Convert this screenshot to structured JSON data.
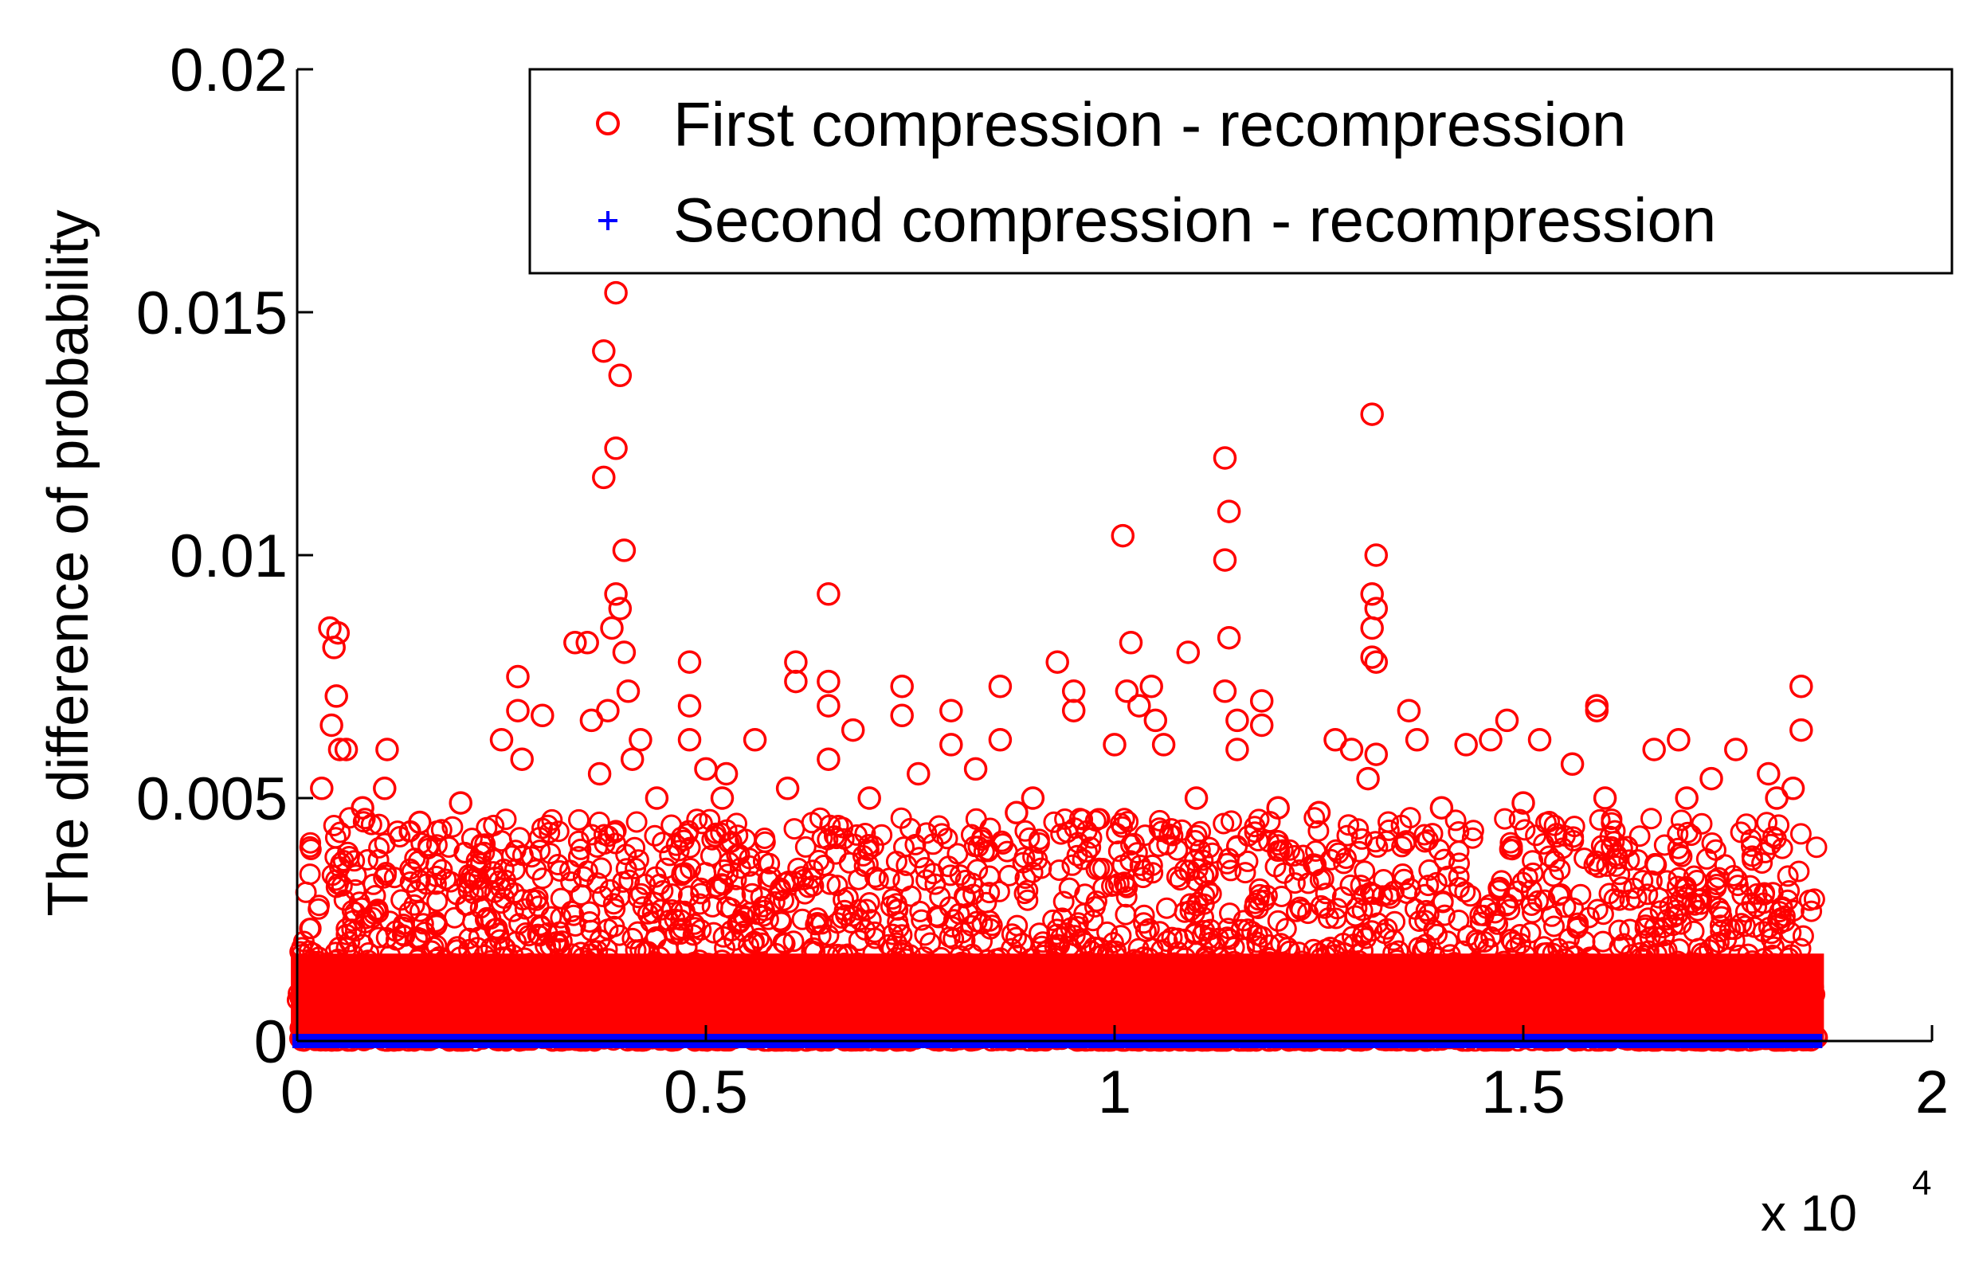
{
  "chart_data": {
    "type": "scatter",
    "ylabel": "The difference of  probability",
    "xlabel": "",
    "x_exponent": {
      "base": "x 10",
      "power": "4"
    },
    "xlim": [
      0,
      20000
    ],
    "ylim": [
      0,
      0.02
    ],
    "x_ticks": [
      0,
      5000,
      10000,
      15000,
      20000
    ],
    "x_tick_labels": [
      "0",
      "0.5",
      "1",
      "1.5",
      "2"
    ],
    "y_ticks": [
      0,
      0.005,
      0.01,
      0.015,
      0.02
    ],
    "y_tick_labels": [
      "0",
      "0.005",
      "0.01",
      "0.015",
      "0.02"
    ],
    "grid": false,
    "legend_position": "top-right",
    "x_range_of_data": [
      0,
      18600
    ],
    "series": [
      {
        "name": "First compression - recompression",
        "marker": "circle",
        "color": "#ff0000",
        "points": [
          [
            400,
            0.0085
          ],
          [
            500,
            0.0084
          ],
          [
            450,
            0.0081
          ],
          [
            480,
            0.0071
          ],
          [
            420,
            0.0065
          ],
          [
            520,
            0.006
          ],
          [
            600,
            0.006
          ],
          [
            1100,
            0.006
          ],
          [
            1070,
            0.0052
          ],
          [
            300,
            0.0052
          ],
          [
            2500,
            0.0062
          ],
          [
            2700,
            0.0075
          ],
          [
            2700,
            0.0068
          ],
          [
            2750,
            0.0058
          ],
          [
            3000,
            0.0067
          ],
          [
            3400,
            0.0082
          ],
          [
            3550,
            0.0082
          ],
          [
            3750,
            0.0142
          ],
          [
            3900,
            0.0154
          ],
          [
            3950,
            0.0137
          ],
          [
            3900,
            0.0122
          ],
          [
            3750,
            0.0116
          ],
          [
            4000,
            0.0101
          ],
          [
            3900,
            0.0092
          ],
          [
            3950,
            0.0089
          ],
          [
            3850,
            0.0085
          ],
          [
            4000,
            0.008
          ],
          [
            4050,
            0.0072
          ],
          [
            3800,
            0.0068
          ],
          [
            3600,
            0.0066
          ],
          [
            4200,
            0.0062
          ],
          [
            4100,
            0.0058
          ],
          [
            3700,
            0.0055
          ],
          [
            4400,
            0.005
          ],
          [
            4800,
            0.0078
          ],
          [
            4800,
            0.0069
          ],
          [
            4800,
            0.0062
          ],
          [
            5000,
            0.0056
          ],
          [
            5250,
            0.0055
          ],
          [
            5200,
            0.005
          ],
          [
            5600,
            0.0062
          ],
          [
            6100,
            0.0078
          ],
          [
            6100,
            0.0074
          ],
          [
            6500,
            0.0092
          ],
          [
            6500,
            0.0074
          ],
          [
            6500,
            0.0069
          ],
          [
            6500,
            0.0058
          ],
          [
            6800,
            0.0064
          ],
          [
            7400,
            0.0073
          ],
          [
            7400,
            0.0067
          ],
          [
            7600,
            0.0055
          ],
          [
            8000,
            0.0068
          ],
          [
            8000,
            0.0061
          ],
          [
            8300,
            0.0056
          ],
          [
            8600,
            0.0073
          ],
          [
            8600,
            0.0062
          ],
          [
            9300,
            0.0078
          ],
          [
            9500,
            0.0072
          ],
          [
            9500,
            0.0068
          ],
          [
            10000,
            0.0061
          ],
          [
            10100,
            0.0104
          ],
          [
            10200,
            0.0082
          ],
          [
            10150,
            0.0072
          ],
          [
            10300,
            0.0069
          ],
          [
            10450,
            0.0073
          ],
          [
            10500,
            0.0066
          ],
          [
            10600,
            0.0061
          ],
          [
            10900,
            0.008
          ],
          [
            11350,
            0.012
          ],
          [
            11400,
            0.0109
          ],
          [
            11350,
            0.0099
          ],
          [
            11400,
            0.0083
          ],
          [
            11350,
            0.0072
          ],
          [
            11500,
            0.0066
          ],
          [
            11500,
            0.006
          ],
          [
            11800,
            0.007
          ],
          [
            11800,
            0.0065
          ],
          [
            12700,
            0.0062
          ],
          [
            12900,
            0.006
          ],
          [
            13150,
            0.0129
          ],
          [
            13200,
            0.01
          ],
          [
            13150,
            0.0092
          ],
          [
            13200,
            0.0089
          ],
          [
            13150,
            0.0085
          ],
          [
            13150,
            0.0079
          ],
          [
            13200,
            0.0078
          ],
          [
            13200,
            0.0059
          ],
          [
            13100,
            0.0054
          ],
          [
            13600,
            0.0068
          ],
          [
            13700,
            0.0062
          ],
          [
            14300,
            0.0061
          ],
          [
            14600,
            0.0062
          ],
          [
            14800,
            0.0066
          ],
          [
            15200,
            0.0062
          ],
          [
            15600,
            0.0057
          ],
          [
            15900,
            0.0069
          ],
          [
            15900,
            0.0068
          ],
          [
            16600,
            0.006
          ],
          [
            16900,
            0.0062
          ],
          [
            17300,
            0.0054
          ],
          [
            17600,
            0.006
          ],
          [
            18000,
            0.0055
          ],
          [
            18400,
            0.0073
          ],
          [
            18400,
            0.0064
          ],
          [
            18300,
            0.0052
          ],
          [
            18100,
            0.005
          ],
          [
            12000,
            0.0048
          ],
          [
            9000,
            0.005
          ],
          [
            7000,
            0.005
          ],
          [
            2000,
            0.0049
          ],
          [
            1500,
            0.0045
          ],
          [
            800,
            0.0048
          ],
          [
            16000,
            0.005
          ],
          [
            14000,
            0.0048
          ],
          [
            17000,
            0.005
          ],
          [
            11000,
            0.005
          ],
          [
            6000,
            0.0052
          ],
          [
            8800,
            0.0047
          ],
          [
            12500,
            0.0047
          ],
          [
            15000,
            0.0049
          ]
        ]
      },
      {
        "name": "Second compression - recompression",
        "marker": "plus",
        "color": "#0000ff",
        "points_note_free": true,
        "points": [
          [
            0,
            0
          ],
          [
            18600,
            0
          ]
        ]
      }
    ]
  }
}
